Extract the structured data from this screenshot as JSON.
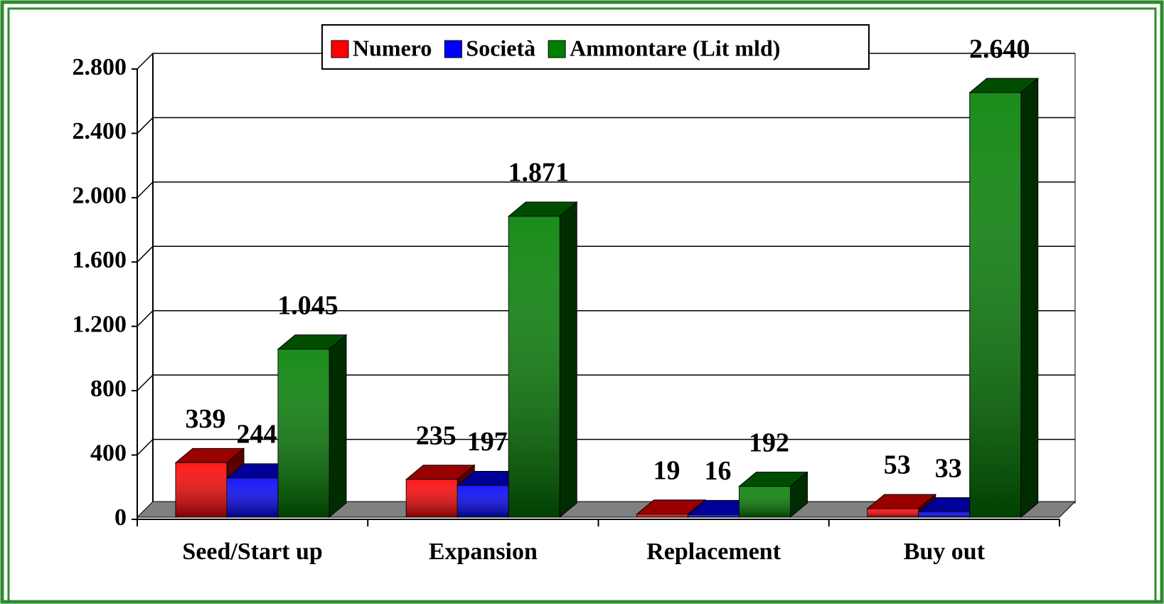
{
  "chart_data": {
    "type": "bar3d",
    "categories": [
      "Seed/Start up",
      "Expansion",
      "Replacement",
      "Buy out"
    ],
    "series": [
      {
        "name": "Numero",
        "color": "#ff0000",
        "values": [
          339,
          235,
          19,
          53
        ]
      },
      {
        "name": "Società",
        "color": "#0000ff",
        "values": [
          244,
          197,
          16,
          33
        ]
      },
      {
        "name": "Ammontare (Lit mld)",
        "color": "#008000",
        "values": [
          1045,
          1871,
          192,
          2640
        ],
        "value_labels": [
          "1.045",
          "1.871",
          "192",
          "2.640"
        ]
      }
    ],
    "ylim": [
      0,
      2800
    ],
    "yticks": [
      0,
      400,
      800,
      {
        "value": 1200,
        "label": "1.200"
      },
      {
        "value": 1600,
        "label": "1.600"
      },
      {
        "value": 2000,
        "label": "2.000"
      },
      {
        "value": 2400,
        "label": "2.400"
      },
      {
        "value": 2800,
        "label": "2.800"
      }
    ],
    "grid": true,
    "legend": "top"
  }
}
